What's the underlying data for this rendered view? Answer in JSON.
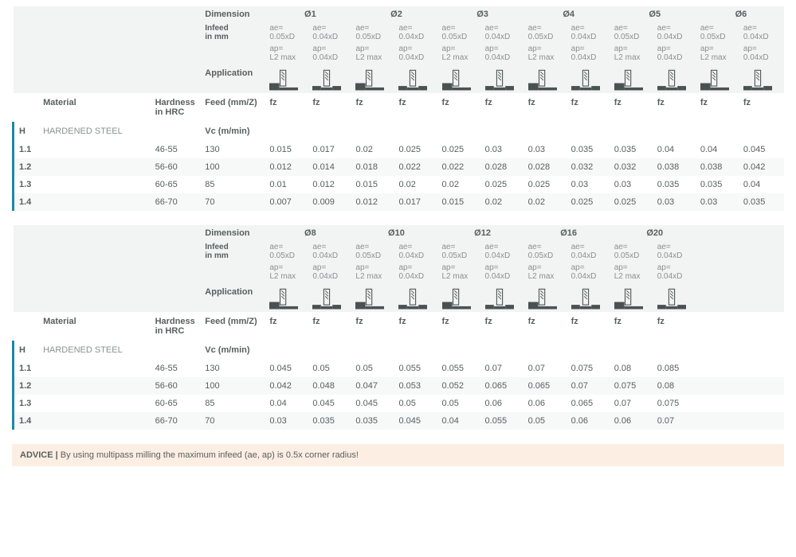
{
  "headers": {
    "dimension": "Dimension",
    "infeed": "Infeed\nin mm",
    "application": "Application",
    "material": "Material",
    "hardness": "Hardness\nin HRC",
    "feed": "Feed (mm/Z)",
    "vc": "Vc (m/min)",
    "fz": "fz",
    "ae1": "ae=\n0.05xD",
    "ae2": "ae=\n0.04xD",
    "ap1": "ap=\nL2 max",
    "ap2": "ap=\n0.04xD"
  },
  "section": {
    "code": "H",
    "name": "HARDENED STEEL"
  },
  "table1": {
    "diameters": [
      "Ø1",
      "Ø2",
      "Ø3",
      "Ø4",
      "Ø5",
      "Ø6"
    ],
    "rows": [
      {
        "code": "1.1",
        "hrc": "46-55",
        "vc": "130",
        "vals": [
          "0.015",
          "0.017",
          "0.02",
          "0.025",
          "0.025",
          "0.03",
          "0.03",
          "0.035",
          "0.035",
          "0.04",
          "0.04",
          "0.045"
        ]
      },
      {
        "code": "1.2",
        "hrc": "56-60",
        "vc": "100",
        "vals": [
          "0.012",
          "0.014",
          "0.018",
          "0.022",
          "0.022",
          "0.028",
          "0.028",
          "0.032",
          "0.032",
          "0.038",
          "0.038",
          "0.042"
        ]
      },
      {
        "code": "1.3",
        "hrc": "60-65",
        "vc": "85",
        "vals": [
          "0.01",
          "0.012",
          "0.015",
          "0.02",
          "0.02",
          "0.025",
          "0.025",
          "0.03",
          "0.03",
          "0.035",
          "0.035",
          "0.04"
        ]
      },
      {
        "code": "1.4",
        "hrc": "66-70",
        "vc": "70",
        "vals": [
          "0.007",
          "0.009",
          "0.012",
          "0.017",
          "0.015",
          "0.02",
          "0.02",
          "0.025",
          "0.025",
          "0.03",
          "0.03",
          "0.035"
        ]
      }
    ]
  },
  "table2": {
    "diameters": [
      "Ø8",
      "Ø10",
      "Ø12",
      "Ø16",
      "Ø20"
    ],
    "rows": [
      {
        "code": "1.1",
        "hrc": "46-55",
        "vc": "130",
        "vals": [
          "0.045",
          "0.05",
          "0.05",
          "0.055",
          "0.055",
          "0.07",
          "0.07",
          "0.075",
          "0.08",
          "0.085"
        ]
      },
      {
        "code": "1.2",
        "hrc": "56-60",
        "vc": "100",
        "vals": [
          "0.042",
          "0.048",
          "0.047",
          "0.053",
          "0.052",
          "0.065",
          "0.065",
          "0.07",
          "0.075",
          "0.08"
        ]
      },
      {
        "code": "1.3",
        "hrc": "60-65",
        "vc": "85",
        "vals": [
          "0.04",
          "0.045",
          "0.045",
          "0.05",
          "0.05",
          "0.06",
          "0.06",
          "0.065",
          "0.07",
          "0.075"
        ]
      },
      {
        "code": "1.4",
        "hrc": "66-70",
        "vc": "70",
        "vals": [
          "0.03",
          "0.035",
          "0.035",
          "0.045",
          "0.04",
          "0.055",
          "0.05",
          "0.06",
          "0.06",
          "0.07"
        ]
      }
    ]
  },
  "advice": {
    "label": "ADVICE",
    "text": "By using multipass milling the maximum infeed (ae, ap) is 0.5x corner radius!"
  }
}
